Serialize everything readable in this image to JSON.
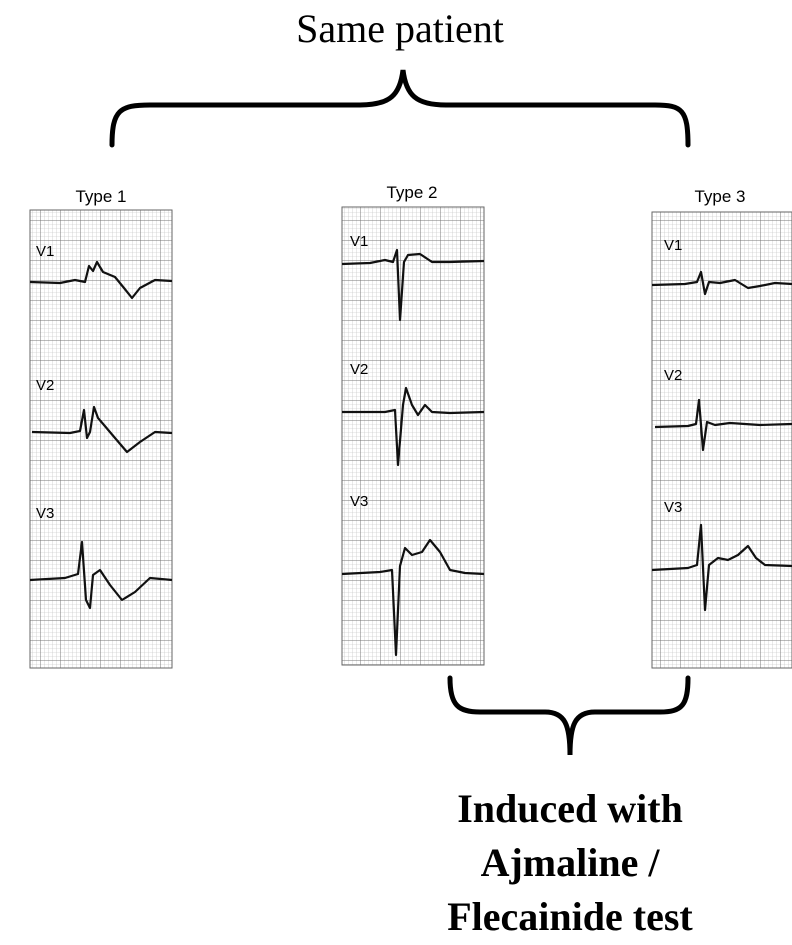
{
  "title": "Same patient",
  "panels": [
    {
      "label": "Type 1",
      "leads": [
        "V1",
        "V2",
        "V3"
      ]
    },
    {
      "label": "Type 2",
      "leads": [
        "V1",
        "V2",
        "V3"
      ]
    },
    {
      "label": "Type 3",
      "leads": [
        "V1",
        "V2",
        "V3"
      ]
    }
  ],
  "footer": {
    "lines": [
      "Induced with",
      "Ajmaline /",
      "Flecainide test"
    ]
  }
}
